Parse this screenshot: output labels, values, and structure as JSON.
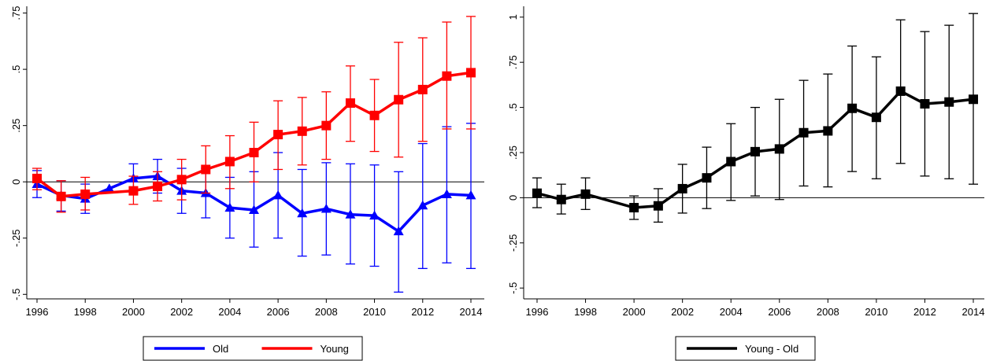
{
  "chart_data": [
    {
      "type": "line",
      "title": "",
      "xlabel": "",
      "ylabel": "",
      "x": [
        1996,
        1997,
        1998,
        1999,
        2000,
        2001,
        2002,
        2003,
        2004,
        2005,
        2006,
        2007,
        2008,
        2009,
        2010,
        2011,
        2012,
        2013,
        2014
      ],
      "xticks": [
        "1996",
        "1998",
        "2000",
        "2002",
        "2004",
        "2006",
        "2008",
        "2010",
        "2012",
        "2014"
      ],
      "yticks": [
        "-.5",
        "-.25",
        "0",
        ".25",
        ".5",
        ".75"
      ],
      "ylim": [
        -0.52,
        0.78
      ],
      "xlim": [
        1995.8,
        2014.2
      ],
      "reference_line_y": 0,
      "legend_position": "bottom",
      "series": [
        {
          "name": "Old",
          "color": "#0000ff",
          "marker": "triangle",
          "values": [
            -0.01,
            -0.06,
            -0.075,
            -0.03,
            0.015,
            0.025,
            -0.04,
            -0.05,
            -0.115,
            -0.125,
            -0.06,
            -0.14,
            -0.12,
            -0.145,
            -0.15,
            -0.22,
            -0.105,
            -0.055,
            -0.06
          ],
          "ci_low": [
            -0.07,
            -0.13,
            -0.14,
            null,
            -0.05,
            -0.05,
            -0.14,
            -0.16,
            -0.25,
            -0.29,
            -0.25,
            -0.33,
            -0.325,
            -0.365,
            -0.375,
            -0.49,
            -0.385,
            -0.36,
            -0.385
          ],
          "ci_high": [
            0.05,
            0.005,
            -0.01,
            null,
            0.08,
            0.1,
            0.06,
            0.06,
            0.02,
            0.045,
            0.13,
            0.055,
            0.085,
            0.08,
            0.075,
            0.045,
            0.17,
            0.245,
            0.26
          ]
        },
        {
          "name": "Young",
          "color": "#ff0000",
          "marker": "square",
          "values": [
            0.015,
            -0.065,
            -0.055,
            null,
            -0.04,
            -0.02,
            0.01,
            0.055,
            0.09,
            0.13,
            0.21,
            0.225,
            0.25,
            0.35,
            0.295,
            0.365,
            0.41,
            0.47,
            0.485
          ],
          "ci_low": [
            -0.035,
            -0.135,
            -0.125,
            null,
            -0.1,
            -0.085,
            -0.08,
            -0.05,
            -0.03,
            0.0,
            0.055,
            0.075,
            0.1,
            0.18,
            0.135,
            0.11,
            0.18,
            0.235,
            0.235
          ],
          "ci_high": [
            0.06,
            0.005,
            0.02,
            null,
            0.025,
            0.045,
            0.1,
            0.16,
            0.205,
            0.265,
            0.36,
            0.375,
            0.4,
            0.515,
            0.455,
            0.62,
            0.64,
            0.71,
            0.735
          ]
        }
      ]
    },
    {
      "type": "line",
      "title": "",
      "xlabel": "",
      "ylabel": "",
      "x": [
        1996,
        1997,
        1998,
        1999,
        2000,
        2001,
        2002,
        2003,
        2004,
        2005,
        2006,
        2007,
        2008,
        2009,
        2010,
        2011,
        2012,
        2013,
        2014
      ],
      "xticks": [
        "1996",
        "1998",
        "2000",
        "2002",
        "2004",
        "2006",
        "2008",
        "2010",
        "2012",
        "2014"
      ],
      "yticks": [
        "-.5",
        "-.25",
        "0",
        ".25",
        ".5",
        ".75",
        "1"
      ],
      "ylim": [
        -0.56,
        1.06
      ],
      "xlim": [
        1995.8,
        2014.2
      ],
      "reference_line_y": 0,
      "legend_position": "bottom",
      "series": [
        {
          "name": "Young - Old",
          "color": "#000000",
          "marker": "square",
          "values": [
            0.025,
            -0.01,
            0.02,
            null,
            -0.055,
            -0.045,
            0.05,
            0.11,
            0.2,
            0.255,
            0.27,
            0.36,
            0.37,
            0.495,
            0.445,
            0.59,
            0.52,
            0.53,
            0.545
          ],
          "ci_low": [
            -0.055,
            -0.09,
            -0.065,
            null,
            -0.12,
            -0.135,
            -0.085,
            -0.06,
            -0.015,
            0.01,
            -0.01,
            0.065,
            0.06,
            0.145,
            0.105,
            0.19,
            0.12,
            0.105,
            0.075
          ],
          "ci_high": [
            0.11,
            0.075,
            0.11,
            null,
            0.01,
            0.05,
            0.185,
            0.28,
            0.41,
            0.5,
            0.545,
            0.65,
            0.685,
            0.84,
            0.78,
            0.985,
            0.92,
            0.955,
            1.02
          ]
        }
      ]
    }
  ]
}
